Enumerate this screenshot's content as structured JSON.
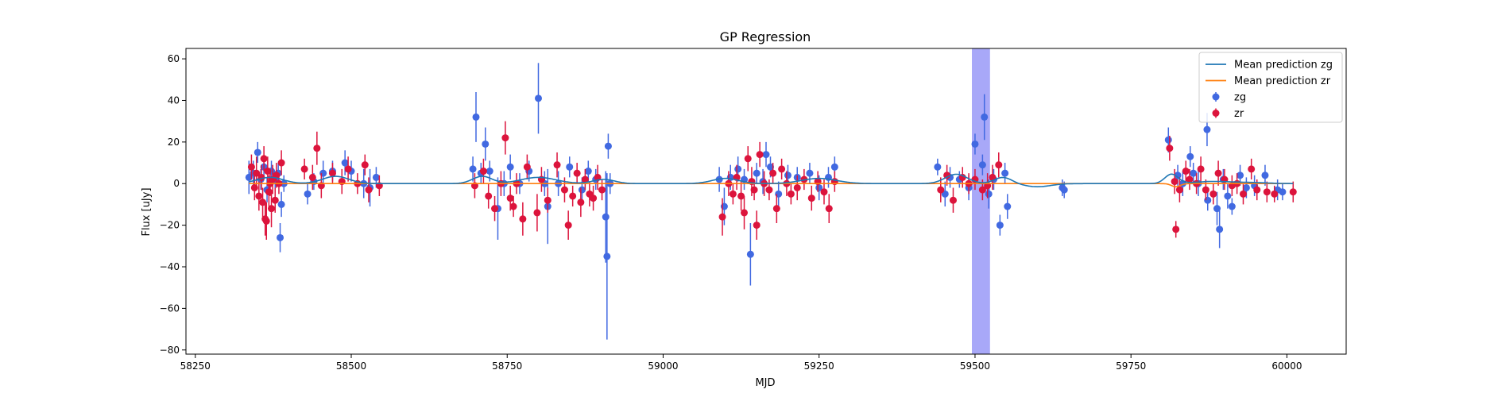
{
  "chart_data": {
    "type": "scatter",
    "title": "GP Regression",
    "xlabel": "MJD",
    "ylabel": "Flux [uJy]",
    "xlim": [
      58235,
      60095
    ],
    "ylim": [
      -82,
      65
    ],
    "xticks": [
      58250,
      58500,
      58750,
      59000,
      59250,
      59500,
      59750,
      60000
    ],
    "yticks": [
      -80,
      -60,
      -40,
      -20,
      0,
      20,
      40,
      60
    ],
    "legend_position": "upper-right",
    "highlight_band": {
      "x0": 59495,
      "x1": 59524,
      "color": "#a8a8f8"
    },
    "legend": [
      {
        "label": "Mean prediction zg",
        "kind": "line",
        "color": "#1f77b4"
      },
      {
        "label": "Mean prediction zr",
        "kind": "line",
        "color": "#ff7f0e"
      },
      {
        "label": "zg",
        "kind": "errorbar",
        "color": "#4169e1"
      },
      {
        "label": "zr",
        "kind": "errorbar",
        "color": "#dc143c"
      }
    ],
    "series": [
      {
        "name": "zg",
        "color": "#4169e1",
        "points": [
          [
            58336,
            3,
            8
          ],
          [
            58343,
            5,
            6
          ],
          [
            58350,
            15,
            5
          ],
          [
            58355,
            2,
            5
          ],
          [
            58360,
            8,
            5
          ],
          [
            58365,
            -3,
            6
          ],
          [
            58372,
            6,
            5
          ],
          [
            58378,
            2,
            4
          ],
          [
            58383,
            5,
            5
          ],
          [
            58386,
            -26,
            7
          ],
          [
            58388,
            -10,
            6
          ],
          [
            58392,
            0,
            4
          ],
          [
            58430,
            -5,
            5
          ],
          [
            58440,
            1,
            4
          ],
          [
            58455,
            5,
            6
          ],
          [
            58470,
            6,
            5
          ],
          [
            58490,
            10,
            6
          ],
          [
            58500,
            6,
            5
          ],
          [
            58520,
            0,
            7
          ],
          [
            58530,
            -2,
            9
          ],
          [
            58540,
            3,
            5
          ],
          [
            58695,
            7,
            6
          ],
          [
            58700,
            32,
            12
          ],
          [
            58708,
            5,
            5
          ],
          [
            58715,
            19,
            8
          ],
          [
            58722,
            6,
            5
          ],
          [
            58735,
            -12,
            15
          ],
          [
            58745,
            0,
            6
          ],
          [
            58755,
            8,
            6
          ],
          [
            58770,
            0,
            5
          ],
          [
            58785,
            6,
            5
          ],
          [
            58800,
            41,
            17
          ],
          [
            58810,
            0,
            6
          ],
          [
            58815,
            -11,
            18
          ],
          [
            58832,
            0,
            6
          ],
          [
            58850,
            8,
            5
          ],
          [
            58870,
            -3,
            6
          ],
          [
            58880,
            6,
            5
          ],
          [
            58892,
            2,
            5
          ],
          [
            58908,
            -16,
            22
          ],
          [
            58910,
            -35,
            40
          ],
          [
            58912,
            18,
            6
          ],
          [
            58915,
            0,
            5
          ],
          [
            59090,
            2,
            6
          ],
          [
            59098,
            -11,
            9
          ],
          [
            59108,
            3,
            6
          ],
          [
            59120,
            7,
            6
          ],
          [
            59130,
            2,
            5
          ],
          [
            59140,
            -34,
            15
          ],
          [
            59150,
            5,
            5
          ],
          [
            59160,
            1,
            6
          ],
          [
            59165,
            14,
            6
          ],
          [
            59172,
            8,
            5
          ],
          [
            59185,
            -5,
            6
          ],
          [
            59200,
            4,
            5
          ],
          [
            59215,
            3,
            5
          ],
          [
            59235,
            5,
            5
          ],
          [
            59250,
            -2,
            6
          ],
          [
            59265,
            3,
            5
          ],
          [
            59275,
            8,
            5
          ],
          [
            59440,
            8,
            4
          ],
          [
            59452,
            -5,
            6
          ],
          [
            59460,
            3,
            5
          ],
          [
            59475,
            2,
            4
          ],
          [
            59490,
            -2,
            6
          ],
          [
            59500,
            19,
            5
          ],
          [
            59512,
            9,
            5
          ],
          [
            59515,
            32,
            11
          ],
          [
            59522,
            -5,
            7
          ],
          [
            59530,
            2,
            5
          ],
          [
            59540,
            -20,
            5
          ],
          [
            59548,
            5,
            5
          ],
          [
            59552,
            -11,
            6
          ],
          [
            59640,
            -2,
            4
          ],
          [
            59643,
            -3,
            4
          ],
          [
            59810,
            21,
            6
          ],
          [
            59825,
            4,
            5
          ],
          [
            59833,
            0,
            6
          ],
          [
            59845,
            13,
            5
          ],
          [
            59850,
            5,
            5
          ],
          [
            59858,
            0,
            6
          ],
          [
            59872,
            26,
            8
          ],
          [
            59873,
            -8,
            5
          ],
          [
            59888,
            -12,
            8
          ],
          [
            59892,
            -22,
            9
          ],
          [
            59898,
            2,
            5
          ],
          [
            59905,
            -6,
            6
          ],
          [
            59912,
            -11,
            4
          ],
          [
            59925,
            4,
            5
          ],
          [
            59935,
            -2,
            5
          ],
          [
            59948,
            -1,
            5
          ],
          [
            59965,
            4,
            5
          ],
          [
            59985,
            -3,
            5
          ],
          [
            59993,
            -4,
            4
          ]
        ]
      },
      {
        "name": "zr",
        "color": "#dc143c",
        "points": [
          [
            58340,
            8,
            6
          ],
          [
            58345,
            -2,
            6
          ],
          [
            58348,
            5,
            8
          ],
          [
            58352,
            -6,
            7
          ],
          [
            58356,
            3,
            6
          ],
          [
            58358,
            -9,
            7
          ],
          [
            58360,
            12,
            6
          ],
          [
            58362,
            -17,
            8
          ],
          [
            58364,
            -18,
            9
          ],
          [
            58366,
            6,
            7
          ],
          [
            58368,
            -4,
            8
          ],
          [
            58370,
            0,
            6
          ],
          [
            58372,
            -12,
            9
          ],
          [
            58374,
            2,
            7
          ],
          [
            58378,
            -8,
            6
          ],
          [
            58380,
            4,
            6
          ],
          [
            58384,
            0,
            5
          ],
          [
            58388,
            10,
            6
          ],
          [
            58425,
            7,
            5
          ],
          [
            58438,
            3,
            6
          ],
          [
            58445,
            17,
            8
          ],
          [
            58452,
            -1,
            6
          ],
          [
            58470,
            5,
            5
          ],
          [
            58485,
            1,
            6
          ],
          [
            58495,
            7,
            6
          ],
          [
            58510,
            0,
            5
          ],
          [
            58522,
            9,
            5
          ],
          [
            58528,
            -3,
            6
          ],
          [
            58545,
            -1,
            5
          ],
          [
            58698,
            -1,
            6
          ],
          [
            58712,
            6,
            6
          ],
          [
            58720,
            -6,
            6
          ],
          [
            58730,
            -12,
            6
          ],
          [
            58740,
            0,
            6
          ],
          [
            58747,
            22,
            8
          ],
          [
            58755,
            -7,
            6
          ],
          [
            58760,
            -11,
            5
          ],
          [
            58765,
            0,
            5
          ],
          [
            58775,
            -17,
            8
          ],
          [
            58782,
            8,
            6
          ],
          [
            58798,
            -14,
            9
          ],
          [
            58805,
            2,
            6
          ],
          [
            58815,
            -8,
            6
          ],
          [
            58830,
            9,
            6
          ],
          [
            58842,
            -3,
            6
          ],
          [
            58848,
            -20,
            7
          ],
          [
            58855,
            -6,
            5
          ],
          [
            58862,
            5,
            5
          ],
          [
            58868,
            -9,
            7
          ],
          [
            58875,
            2,
            5
          ],
          [
            58882,
            -5,
            6
          ],
          [
            58888,
            -7,
            6
          ],
          [
            58895,
            3,
            6
          ],
          [
            58902,
            -3,
            5
          ],
          [
            59095,
            -16,
            9
          ],
          [
            59105,
            0,
            6
          ],
          [
            59112,
            -5,
            5
          ],
          [
            59118,
            3,
            6
          ],
          [
            59125,
            -6,
            7
          ],
          [
            59130,
            -14,
            8
          ],
          [
            59136,
            12,
            6
          ],
          [
            59142,
            1,
            7
          ],
          [
            59146,
            -3,
            5
          ],
          [
            59150,
            -20,
            7
          ],
          [
            59155,
            14,
            6
          ],
          [
            59162,
            0,
            6
          ],
          [
            59170,
            -3,
            5
          ],
          [
            59176,
            5,
            5
          ],
          [
            59182,
            -12,
            7
          ],
          [
            59190,
            7,
            5
          ],
          [
            59198,
            0,
            6
          ],
          [
            59205,
            -5,
            5
          ],
          [
            59215,
            -2,
            6
          ],
          [
            59226,
            2,
            5
          ],
          [
            59238,
            -7,
            6
          ],
          [
            59248,
            1,
            5
          ],
          [
            59258,
            -4,
            6
          ],
          [
            59266,
            -12,
            7
          ],
          [
            59275,
            1,
            5
          ],
          [
            59445,
            -3,
            6
          ],
          [
            59455,
            4,
            5
          ],
          [
            59465,
            -8,
            6
          ],
          [
            59480,
            3,
            5
          ],
          [
            59490,
            0,
            5
          ],
          [
            59500,
            2,
            5
          ],
          [
            59512,
            -3,
            5
          ],
          [
            59520,
            -1,
            6
          ],
          [
            59528,
            3,
            6
          ],
          [
            59538,
            9,
            6
          ],
          [
            59812,
            17,
            6
          ],
          [
            59820,
            1,
            6
          ],
          [
            59822,
            -22,
            4
          ],
          [
            59828,
            -3,
            6
          ],
          [
            59838,
            6,
            5
          ],
          [
            59844,
            2,
            5
          ],
          [
            59855,
            0,
            5
          ],
          [
            59862,
            7,
            6
          ],
          [
            59870,
            -3,
            5
          ],
          [
            59882,
            -5,
            5
          ],
          [
            59890,
            5,
            6
          ],
          [
            59900,
            2,
            5
          ],
          [
            59912,
            -1,
            5
          ],
          [
            59920,
            0,
            5
          ],
          [
            59930,
            -5,
            5
          ],
          [
            59943,
            7,
            5
          ],
          [
            59952,
            -3,
            5
          ],
          [
            59968,
            -4,
            5
          ],
          [
            59980,
            -5,
            4
          ],
          [
            60010,
            -4,
            5
          ]
        ]
      }
    ]
  }
}
